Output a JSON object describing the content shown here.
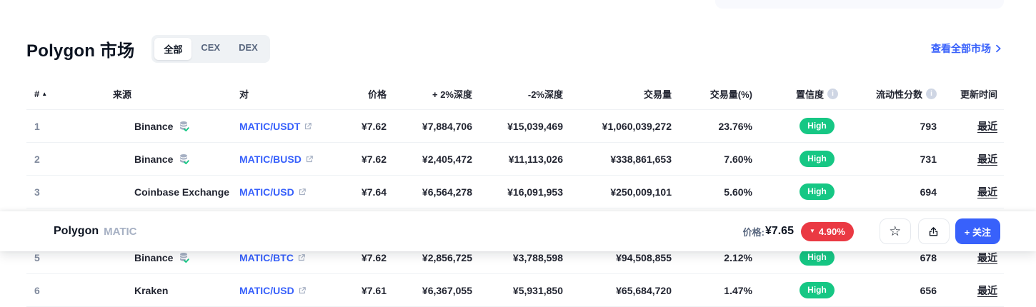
{
  "header": {
    "title": "Polygon 市场",
    "tabs": [
      {
        "label": "全部",
        "active": true
      },
      {
        "label": "CEX",
        "active": false
      },
      {
        "label": "DEX",
        "active": false
      }
    ],
    "view_all_link": "查看全部市场"
  },
  "table": {
    "columns": [
      {
        "label": "#",
        "sort": true
      },
      {
        "label": "来源"
      },
      {
        "label": "对"
      },
      {
        "label": "价格"
      },
      {
        "label": "+ 2%深度"
      },
      {
        "label": "-2%深度"
      },
      {
        "label": "交易量"
      },
      {
        "label": "交易量(%)"
      },
      {
        "label": "置信度",
        "info": true
      },
      {
        "label": "流动性分数",
        "info": true
      },
      {
        "label": "更新时间"
      }
    ],
    "rows": [
      {
        "rank": "1",
        "source": "Binance",
        "verified": true,
        "pair": "MATIC/USDT",
        "price": "¥7.62",
        "depth_plus": "¥7,884,706",
        "depth_minus": "¥15,039,469",
        "volume": "¥1,060,039,272",
        "volume_pct": "23.76%",
        "confidence": "High",
        "liquidity": "793",
        "updated": "最近"
      },
      {
        "rank": "2",
        "source": "Binance",
        "verified": true,
        "pair": "MATIC/BUSD",
        "price": "¥7.62",
        "depth_plus": "¥2,405,472",
        "depth_minus": "¥11,113,026",
        "volume": "¥338,861,653",
        "volume_pct": "7.60%",
        "confidence": "High",
        "liquidity": "731",
        "updated": "最近"
      },
      {
        "rank": "3",
        "source": "Coinbase Exchange",
        "verified": false,
        "pair": "MATIC/USD",
        "price": "¥7.64",
        "depth_plus": "¥6,564,278",
        "depth_minus": "¥16,091,953",
        "volume": "¥250,009,101",
        "volume_pct": "5.60%",
        "confidence": "High",
        "liquidity": "694",
        "updated": "最近"
      },
      {
        "rank": "5",
        "source": "Binance",
        "verified": true,
        "pair": "MATIC/BTC",
        "price": "¥7.62",
        "depth_plus": "¥2,856,725",
        "depth_minus": "¥3,788,598",
        "volume": "¥94,508,855",
        "volume_pct": "2.12%",
        "confidence": "High",
        "liquidity": "678",
        "updated": "最近"
      },
      {
        "rank": "6",
        "source": "Kraken",
        "verified": false,
        "pair": "MATIC/USD",
        "price": "¥7.61",
        "depth_plus": "¥6,367,055",
        "depth_minus": "¥5,931,850",
        "volume": "¥65,684,720",
        "volume_pct": "1.47%",
        "confidence": "High",
        "liquidity": "656",
        "updated": "最近"
      }
    ]
  },
  "sticky_bar": {
    "coin_name": "Polygon",
    "coin_symbol": "MATIC",
    "price_label": "价格:",
    "price": "¥7.65",
    "change": "4.90%",
    "change_direction": "down",
    "follow_button": "+ 关注"
  },
  "icons": {
    "sort_asc": "▲",
    "info": "i",
    "star": "☆",
    "triangle_down": "▼",
    "verified": "exchange-verified-check",
    "external_link": "external-link-arrow",
    "chevron_right": "chevron-right",
    "share": "share-upload-arrow"
  },
  "colors": {
    "accent_blue": "#3861fb",
    "positive_green": "#16c784",
    "negative_red": "#ea3943"
  }
}
